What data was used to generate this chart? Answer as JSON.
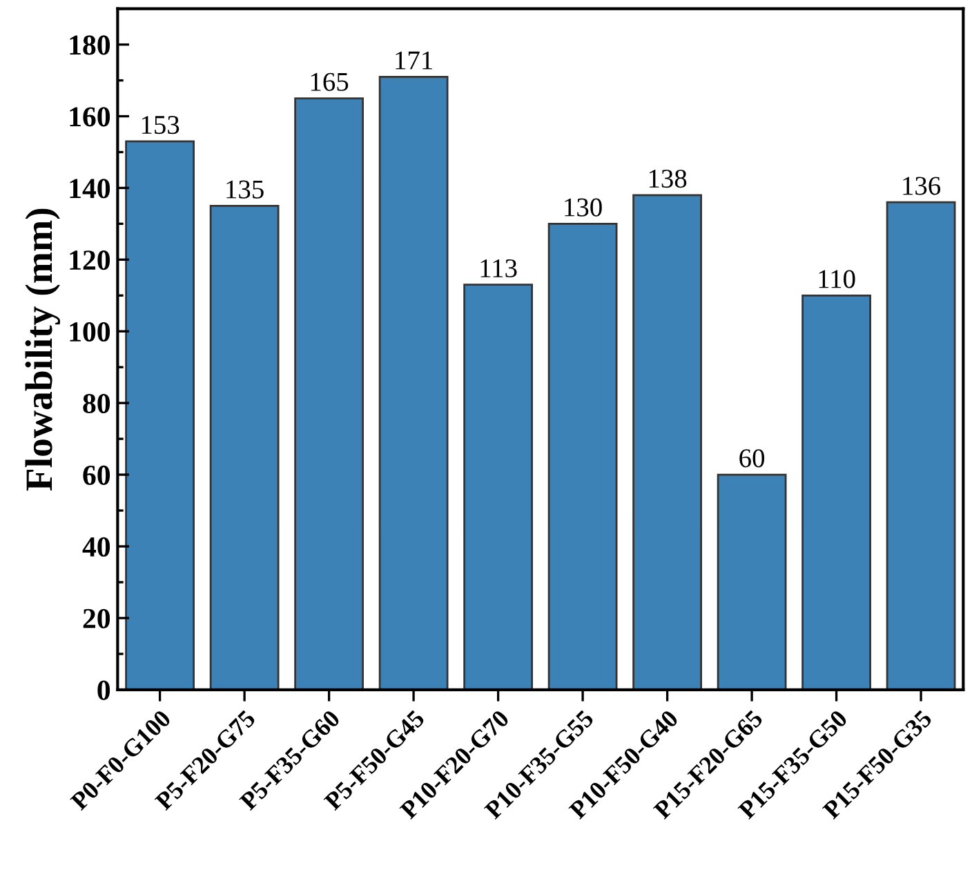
{
  "chart_data": {
    "type": "bar",
    "ylabel": "Flowability (mm)",
    "categories": [
      "P0-F0-G100",
      "P5-F20-G75",
      "P5-F35-G60",
      "P5-F50-G45",
      "P10-F20-G70",
      "P10-F35-G55",
      "P10-F50-G40",
      "P15-F20-G65",
      "P15-F35-G50",
      "P15-F50-G35"
    ],
    "values": [
      153,
      135,
      165,
      171,
      113,
      130,
      138,
      60,
      110,
      136
    ],
    "color": "#3d82b6",
    "ylim": [
      0,
      190
    ],
    "yticks": [
      0,
      20,
      40,
      60,
      80,
      100,
      120,
      140,
      160,
      180
    ],
    "data_labels": true,
    "grid": false,
    "legend": false
  }
}
